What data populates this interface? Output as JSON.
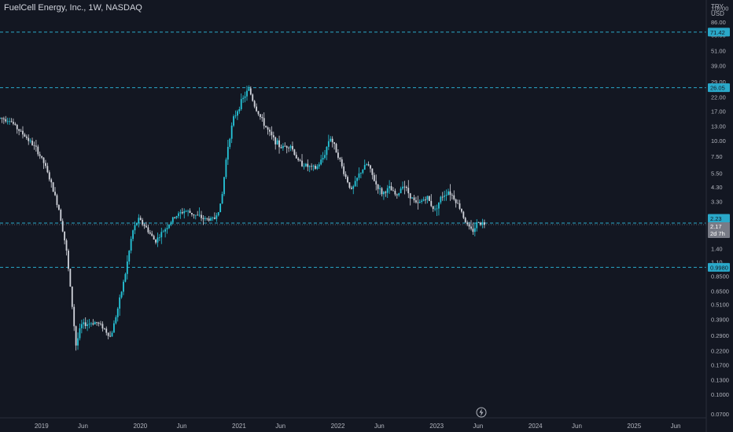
{
  "header": {
    "title": "FuelCell Energy, Inc., 1W, NASDAQ",
    "currency_top": "TRY",
    "currency": "USD"
  },
  "chart_data": {
    "type": "candlestick",
    "title": "FuelCell Energy, Inc., 1W, NASDAQ",
    "y_scale": "log",
    "ylim": [
      0.065,
      128
    ],
    "grid": false,
    "colors": {
      "up": "#26c6da",
      "down": "#d1d4dc",
      "background": "#131722",
      "line": "#2aa8c9"
    },
    "x_ticks": [
      {
        "label": "2019",
        "x": 2019.0
      },
      {
        "label": "Jun",
        "x": 2019.42
      },
      {
        "label": "2020",
        "x": 2020.0
      },
      {
        "label": "Jun",
        "x": 2020.42
      },
      {
        "label": "2021",
        "x": 2021.0
      },
      {
        "label": "Jun",
        "x": 2021.42
      },
      {
        "label": "2022",
        "x": 2022.0
      },
      {
        "label": "Jun",
        "x": 2022.42
      },
      {
        "label": "2023",
        "x": 2023.0
      },
      {
        "label": "Jun",
        "x": 2023.42
      },
      {
        "label": "2024",
        "x": 2024.0
      },
      {
        "label": "Jun",
        "x": 2024.42
      },
      {
        "label": "2025",
        "x": 2025.0
      },
      {
        "label": "Jun",
        "x": 2025.42
      }
    ],
    "xlim": [
      2018.58,
      2025.73
    ],
    "y_ticks": [
      "110.00",
      "86.00",
      "68.00",
      "51.00",
      "39.00",
      "29.00",
      "22.00",
      "17.00",
      "13.00",
      "10.00",
      "7.50",
      "5.50",
      "4.30",
      "3.30",
      "1.40",
      "1.10",
      "0.8500",
      "0.6500",
      "0.5100",
      "0.3900",
      "0.2900",
      "0.2200",
      "0.1700",
      "0.1300",
      "0.1000",
      "0.0700"
    ],
    "horizontal_lines": [
      {
        "value": 71.42,
        "label": "71.42"
      },
      {
        "value": 26.05,
        "label": "26.05"
      },
      {
        "value": 2.23,
        "label": "2.23"
      },
      {
        "value": 0.998,
        "label": "0.9980"
      }
    ],
    "last_price": {
      "value": 2.17,
      "label": "2.17",
      "countdown": "2d 7h"
    },
    "price_path": [
      [
        2018.58,
        15.0
      ],
      [
        2018.68,
        14.5
      ],
      [
        2018.75,
        12.5
      ],
      [
        2018.85,
        10.5
      ],
      [
        2018.95,
        8.5
      ],
      [
        2019.03,
        6.5
      ],
      [
        2019.1,
        4.5
      ],
      [
        2019.18,
        2.8
      ],
      [
        2019.25,
        1.4
      ],
      [
        2019.3,
        0.6
      ],
      [
        2019.35,
        0.24
      ],
      [
        2019.4,
        0.35
      ],
      [
        2019.48,
        0.36
      ],
      [
        2019.55,
        0.37
      ],
      [
        2019.62,
        0.34
      ],
      [
        2019.7,
        0.28
      ],
      [
        2019.78,
        0.5
      ],
      [
        2019.85,
        0.9
      ],
      [
        2019.92,
        1.9
      ],
      [
        2019.98,
        2.4
      ],
      [
        2020.05,
        2.1
      ],
      [
        2020.15,
        1.6
      ],
      [
        2020.25,
        2.0
      ],
      [
        2020.35,
        2.5
      ],
      [
        2020.45,
        2.8
      ],
      [
        2020.55,
        2.6
      ],
      [
        2020.65,
        2.4
      ],
      [
        2020.75,
        2.4
      ],
      [
        2020.82,
        3.2
      ],
      [
        2020.88,
        8.5
      ],
      [
        2020.94,
        14.5
      ],
      [
        2021.02,
        20.0
      ],
      [
        2021.1,
        25.5
      ],
      [
        2021.16,
        18.5
      ],
      [
        2021.24,
        14.0
      ],
      [
        2021.32,
        11.0
      ],
      [
        2021.42,
        8.8
      ],
      [
        2021.52,
        9.2
      ],
      [
        2021.6,
        6.8
      ],
      [
        2021.7,
        6.2
      ],
      [
        2021.78,
        6.0
      ],
      [
        2021.86,
        7.5
      ],
      [
        2021.92,
        10.8
      ],
      [
        2022.0,
        7.8
      ],
      [
        2022.06,
        5.6
      ],
      [
        2022.14,
        4.0
      ],
      [
        2022.22,
        5.5
      ],
      [
        2022.3,
        6.6
      ],
      [
        2022.38,
        4.6
      ],
      [
        2022.45,
        3.8
      ],
      [
        2022.52,
        4.2
      ],
      [
        2022.6,
        3.6
      ],
      [
        2022.66,
        4.6
      ],
      [
        2022.72,
        3.8
      ],
      [
        2022.8,
        3.1
      ],
      [
        2022.9,
        3.6
      ],
      [
        2022.98,
        2.8
      ],
      [
        2023.05,
        3.6
      ],
      [
        2023.12,
        4.0
      ],
      [
        2023.18,
        3.5
      ],
      [
        2023.25,
        2.8
      ],
      [
        2023.3,
        2.2
      ],
      [
        2023.36,
        1.9
      ],
      [
        2023.42,
        2.3
      ],
      [
        2023.48,
        2.2
      ],
      [
        2023.5,
        2.17
      ]
    ]
  }
}
